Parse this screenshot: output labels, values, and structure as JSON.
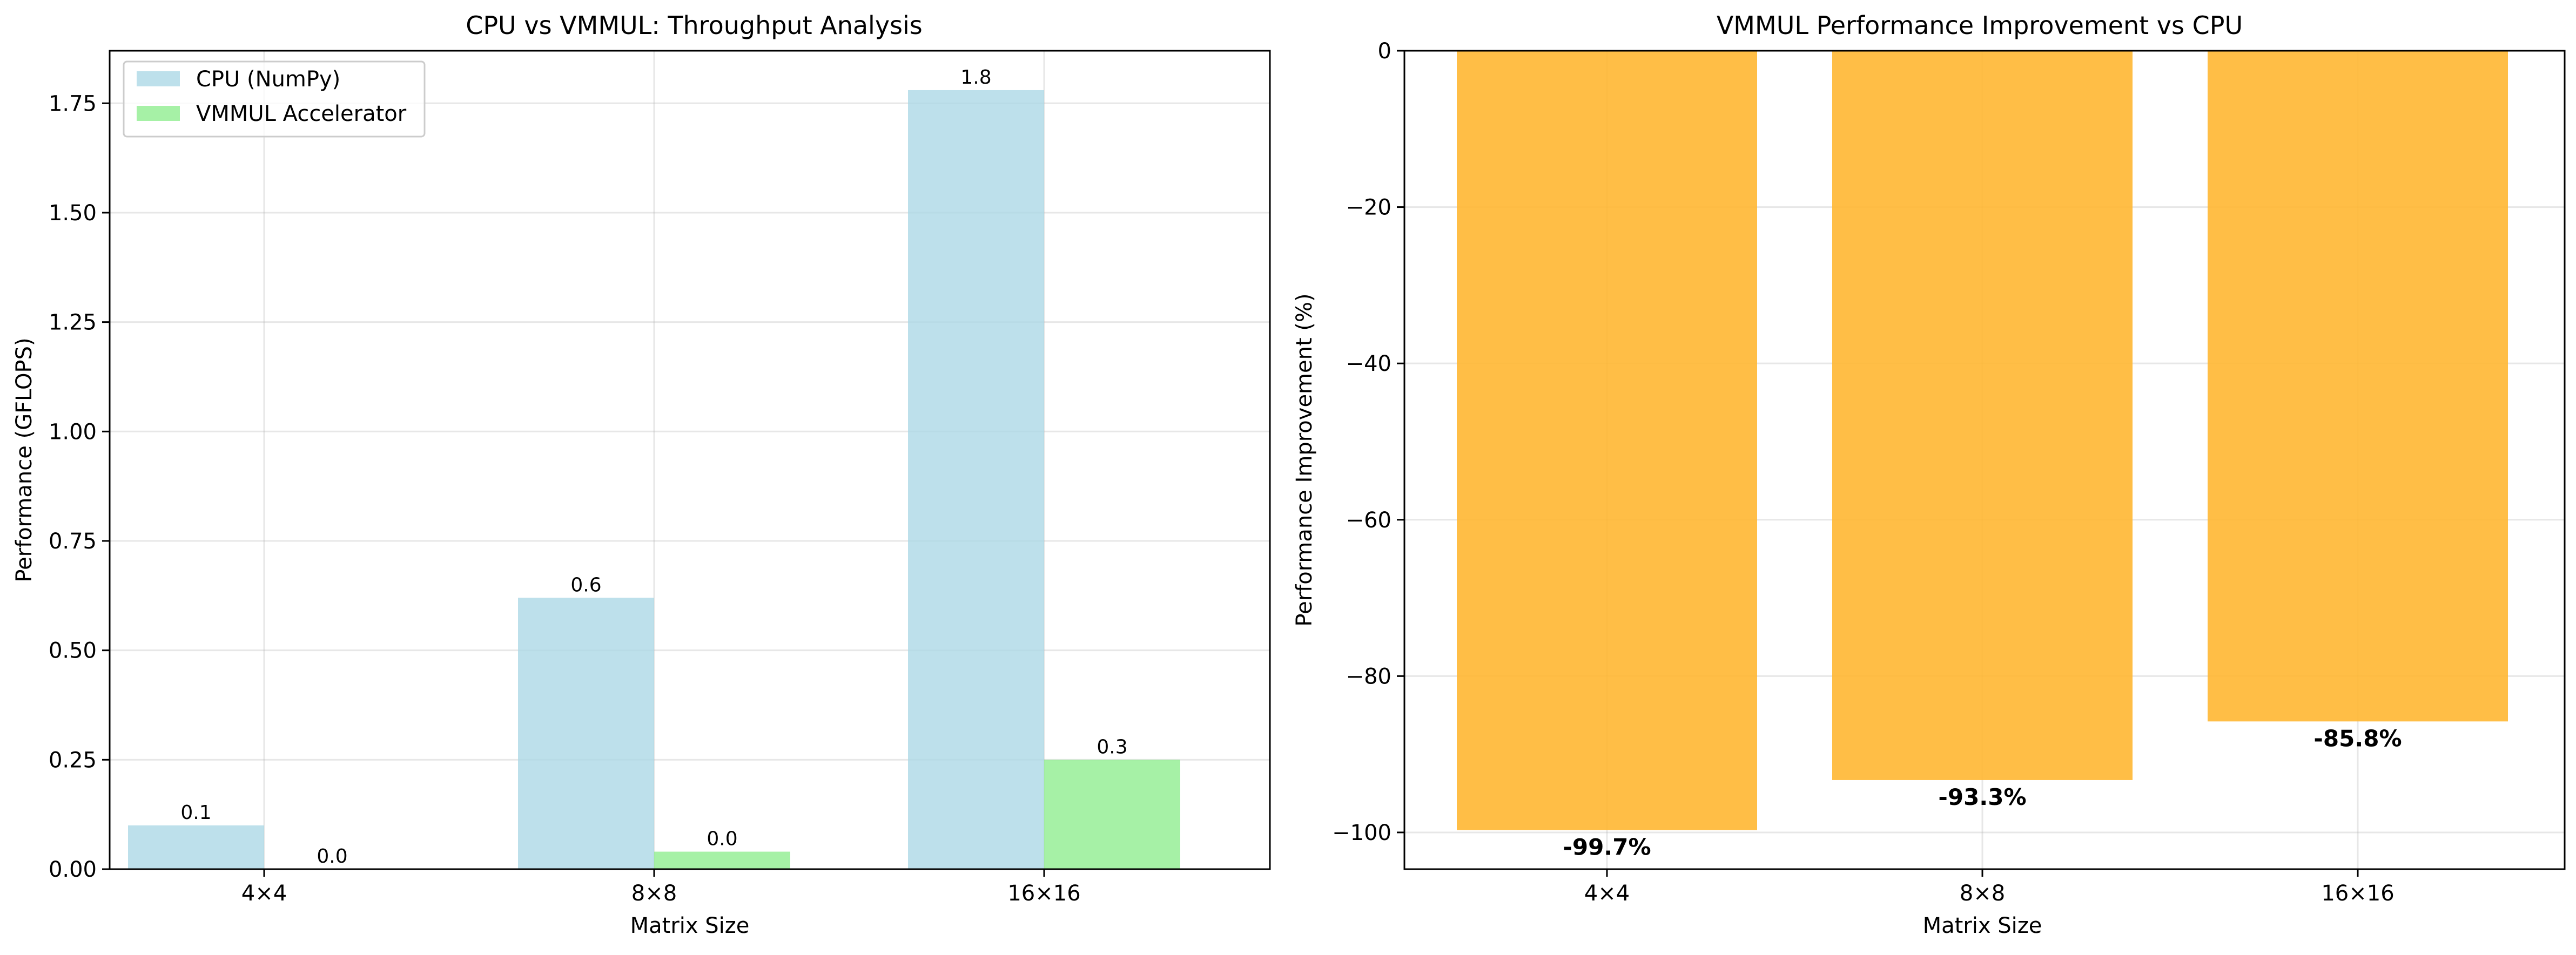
{
  "chart_data": [
    {
      "type": "bar",
      "title": "CPU vs VMMUL: Throughput Analysis",
      "xlabel": "Matrix Size",
      "ylabel": "Performance (GFLOPS)",
      "categories": [
        "4×4",
        "8×8",
        "16×16"
      ],
      "ylim": [
        0,
        1.87
      ],
      "yticks": [
        "0.00",
        "0.25",
        "0.50",
        "0.75",
        "1.00",
        "1.25",
        "1.50",
        "1.75"
      ],
      "grid": true,
      "legend_position": "top-left",
      "series": [
        {
          "name": "CPU (NumPy)",
          "color": "#add8e6",
          "values": [
            0.1,
            0.62,
            1.78
          ],
          "labels": [
            "0.1",
            "0.6",
            "1.8"
          ]
        },
        {
          "name": "VMMUL Accelerator",
          "color": "#90ee90",
          "values": [
            0.0003,
            0.04,
            0.25
          ],
          "labels": [
            "0.0",
            "0.0",
            "0.3"
          ]
        }
      ]
    },
    {
      "type": "bar",
      "title": "VMMUL Performance Improvement vs CPU",
      "xlabel": "Matrix Size",
      "ylabel": "Performance Improvement (%)",
      "categories": [
        "4×4",
        "8×8",
        "16×16"
      ],
      "ylim": [
        -104.7,
        0
      ],
      "yticks": [
        "−100",
        "−80",
        "−60",
        "−40",
        "−20",
        "0"
      ],
      "grid": true,
      "series": [
        {
          "color": "#ffb732",
          "values": [
            -99.7,
            -93.3,
            -85.8
          ],
          "labels": [
            "-99.7%",
            "-93.3%",
            "-85.8%"
          ]
        }
      ]
    }
  ]
}
